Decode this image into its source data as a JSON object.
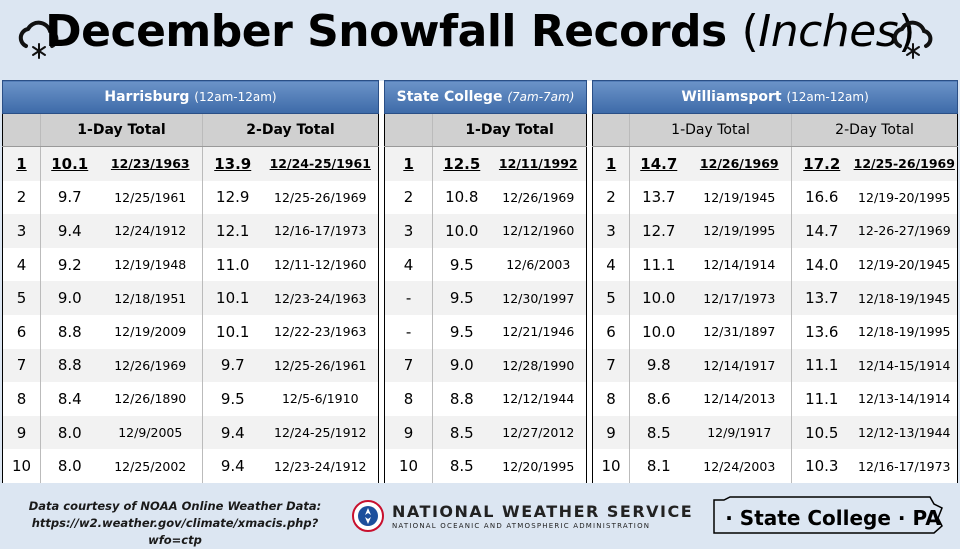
{
  "title": {
    "main": "December Snowfall Records",
    "units": "Inches",
    "open_paren": "(",
    "close_paren": ")"
  },
  "stations": [
    {
      "name": "Harrisburg",
      "hours": "(12am-12am)"
    },
    {
      "name": "State College",
      "hours": "(7am-7am)"
    },
    {
      "name": "Williamsport",
      "hours": "(12am-12am)"
    }
  ],
  "subheaders": {
    "one_day": "1-Day Total",
    "two_day": "2-Day Total"
  },
  "rows": [
    {
      "h_rank": "1",
      "h1v": "10.1",
      "h1d": "12/23/1963",
      "h2v": "13.9",
      "h2d": "12/24-25/1961",
      "s_rank": "1",
      "s1v": "12.5",
      "s1d": "12/11/1992",
      "w_rank": "1",
      "w1v": "14.7",
      "w1d": "12/26/1969",
      "w2v": "17.2",
      "w2d": "12/25-26/1969"
    },
    {
      "h_rank": "2",
      "h1v": "9.7",
      "h1d": "12/25/1961",
      "h2v": "12.9",
      "h2d": "12/25-26/1969",
      "s_rank": "2",
      "s1v": "10.8",
      "s1d": "12/26/1969",
      "w_rank": "2",
      "w1v": "13.7",
      "w1d": "12/19/1945",
      "w2v": "16.6",
      "w2d": "12/19-20/1995"
    },
    {
      "h_rank": "3",
      "h1v": "9.4",
      "h1d": "12/24/1912",
      "h2v": "12.1",
      "h2d": "12/16-17/1973",
      "s_rank": "3",
      "s1v": "10.0",
      "s1d": "12/12/1960",
      "w_rank": "3",
      "w1v": "12.7",
      "w1d": "12/19/1995",
      "w2v": "14.7",
      "w2d": "12-26-27/1969"
    },
    {
      "h_rank": "4",
      "h1v": "9.2",
      "h1d": "12/19/1948",
      "h2v": "11.0",
      "h2d": "12/11-12/1960",
      "s_rank": "4",
      "s1v": "9.5",
      "s1d": "12/6/2003",
      "w_rank": "4",
      "w1v": "11.1",
      "w1d": "12/14/1914",
      "w2v": "14.0",
      "w2d": "12/19-20/1945"
    },
    {
      "h_rank": "5",
      "h1v": "9.0",
      "h1d": "12/18/1951",
      "h2v": "10.1",
      "h2d": "12/23-24/1963",
      "s_rank": "-",
      "s1v": "9.5",
      "s1d": "12/30/1997",
      "w_rank": "5",
      "w1v": "10.0",
      "w1d": "12/17/1973",
      "w2v": "13.7",
      "w2d": "12/18-19/1945"
    },
    {
      "h_rank": "6",
      "h1v": "8.8",
      "h1d": "12/19/2009",
      "h2v": "10.1",
      "h2d": "12/22-23/1963",
      "s_rank": "-",
      "s1v": "9.5",
      "s1d": "12/21/1946",
      "w_rank": "6",
      "w1v": "10.0",
      "w1d": "12/31/1897",
      "w2v": "13.6",
      "w2d": "12/18-19/1995"
    },
    {
      "h_rank": "7",
      "h1v": "8.8",
      "h1d": "12/26/1969",
      "h2v": "9.7",
      "h2d": "12/25-26/1961",
      "s_rank": "7",
      "s1v": "9.0",
      "s1d": "12/28/1990",
      "w_rank": "7",
      "w1v": "9.8",
      "w1d": "12/14/1917",
      "w2v": "11.1",
      "w2d": "12/14-15/1914"
    },
    {
      "h_rank": "8",
      "h1v": "8.4",
      "h1d": "12/26/1890",
      "h2v": "9.5",
      "h2d": "12/5-6/1910",
      "s_rank": "8",
      "s1v": "8.8",
      "s1d": "12/12/1944",
      "w_rank": "8",
      "w1v": "8.6",
      "w1d": "12/14/2013",
      "w2v": "11.1",
      "w2d": "12/13-14/1914"
    },
    {
      "h_rank": "9",
      "h1v": "8.0",
      "h1d": "12/9/2005",
      "h2v": "9.4",
      "h2d": "12/24-25/1912",
      "s_rank": "9",
      "s1v": "8.5",
      "s1d": "12/27/2012",
      "w_rank": "9",
      "w1v": "8.5",
      "w1d": "12/9/1917",
      "w2v": "10.5",
      "w2d": "12/12-13/1944"
    },
    {
      "h_rank": "10",
      "h1v": "8.0",
      "h1d": "12/25/2002",
      "h2v": "9.4",
      "h2d": "12/23-24/1912",
      "s_rank": "10",
      "s1v": "8.5",
      "s1d": "12/20/1995",
      "w_rank": "10",
      "w1v": "8.1",
      "w1d": "12/24/2003",
      "w2v": "10.3",
      "w2d": "12/16-17/1973"
    }
  ],
  "footer": {
    "credit_line1": "Data courtesy of NOAA Online Weather Data:",
    "credit_line2": "https://w2.weather.gov/climate/xmacis.php?wfo=ctp",
    "agency": "NATIONAL WEATHER SERVICE",
    "agency_sub": "NATIONAL OCEANIC AND ATMOSPHERIC ADMINISTRATION",
    "office": "· State College · PA"
  },
  "colors": {
    "header_blue": "#3d6aa8",
    "background": "#dce6f2",
    "sub_gray": "#d0d0d0"
  },
  "icons": {
    "left": "snow-cloud-icon",
    "right": "snow-cloud-icon",
    "seal": "nws-seal-icon",
    "state": "pennsylvania-outline-icon"
  }
}
